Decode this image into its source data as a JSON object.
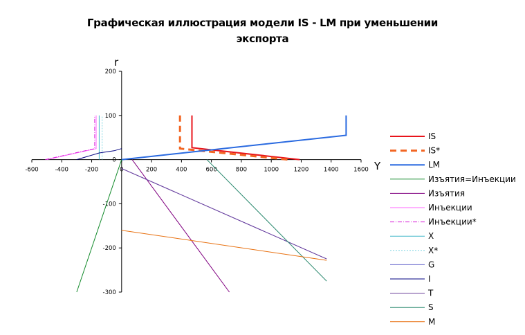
{
  "page": {
    "title_line1": "Графическая иллюстрация модели IS - LM при уменьшении",
    "title_line2": "экспорта"
  },
  "chart_data": {
    "type": "line",
    "title": "Графическая иллюстрация модели IS - LM при уменьшении экспорта",
    "xlabel": "Y",
    "ylabel": "r",
    "xlim": [
      -600,
      1600
    ],
    "ylim": [
      -300,
      200
    ],
    "xticks": [
      "-600",
      "-400",
      "-200",
      "0",
      "200",
      "400",
      "600",
      "800",
      "1000",
      "1200",
      "1400",
      "1600"
    ],
    "yticks": [
      "200",
      "100",
      "0",
      "-100",
      "-200",
      "-300"
    ],
    "grid": false,
    "legend_position": "right",
    "series": [
      {
        "name": "IS",
        "color": "#e8141b",
        "width": 2,
        "dash": "",
        "points": [
          [
            470,
            100
          ],
          [
            470,
            27
          ],
          [
            1190,
            0
          ]
        ]
      },
      {
        "name": "IS*",
        "color": "#f26522",
        "width": 3,
        "dash": "9,6",
        "points": [
          [
            390,
            100
          ],
          [
            390,
            25
          ],
          [
            1110,
            0
          ]
        ]
      },
      {
        "name": "LM",
        "color": "#2a6ae0",
        "width": 2,
        "dash": "",
        "points": [
          [
            0,
            0
          ],
          [
            1500,
            55
          ],
          [
            1500,
            100
          ]
        ]
      },
      {
        "name": "Изъятия=Инъекции",
        "color": "#118a2a",
        "width": 1,
        "dash": "",
        "points": [
          [
            -300,
            -300
          ],
          [
            0,
            0
          ]
        ]
      },
      {
        "name": "Изъятия",
        "color": "#800080",
        "width": 1,
        "dash": "",
        "points": [
          [
            70,
            0
          ],
          [
            720,
            -300
          ]
        ]
      },
      {
        "name": "Инъекции",
        "color": "#ff66ff",
        "width": 1,
        "dash": "",
        "points": [
          [
            -500,
            0
          ],
          [
            -170,
            25
          ],
          [
            -170,
            100
          ]
        ]
      },
      {
        "name": "Инъекции*",
        "color": "#d81bd8",
        "width": 1,
        "dash": "6,2,1,2",
        "points": [
          [
            -510,
            0
          ],
          [
            -180,
            25
          ],
          [
            -180,
            100
          ]
        ]
      },
      {
        "name": "X",
        "color": "#40b7c8",
        "width": 1,
        "dash": "",
        "points": [
          [
            -150,
            0
          ],
          [
            -150,
            100
          ]
        ]
      },
      {
        "name": "X*",
        "color": "#7fd6e2",
        "width": 1,
        "dash": "2,2",
        "points": [
          [
            -130,
            0
          ],
          [
            -130,
            100
          ]
        ]
      },
      {
        "name": "G",
        "color": "#6666cc",
        "width": 1,
        "dash": "",
        "points": [
          [
            0,
            -20
          ],
          [
            1370,
            -225
          ]
        ]
      },
      {
        "name": "I",
        "color": "#000080",
        "width": 1,
        "dash": "",
        "points": [
          [
            -300,
            0
          ],
          [
            -150,
            15
          ],
          [
            -50,
            20
          ],
          [
            0,
            25
          ]
        ]
      },
      {
        "name": "T",
        "color": "#6a3d9a",
        "width": 1,
        "dash": "",
        "points": [
          [
            0,
            -20
          ],
          [
            1370,
            -225
          ]
        ]
      },
      {
        "name": "S",
        "color": "#2d8a70",
        "width": 1,
        "dash": "",
        "points": [
          [
            570,
            0
          ],
          [
            1370,
            -275
          ]
        ]
      },
      {
        "name": "M",
        "color": "#e87111",
        "width": 1,
        "dash": "",
        "points": [
          [
            0,
            -160
          ],
          [
            1370,
            -228
          ]
        ]
      }
    ]
  }
}
